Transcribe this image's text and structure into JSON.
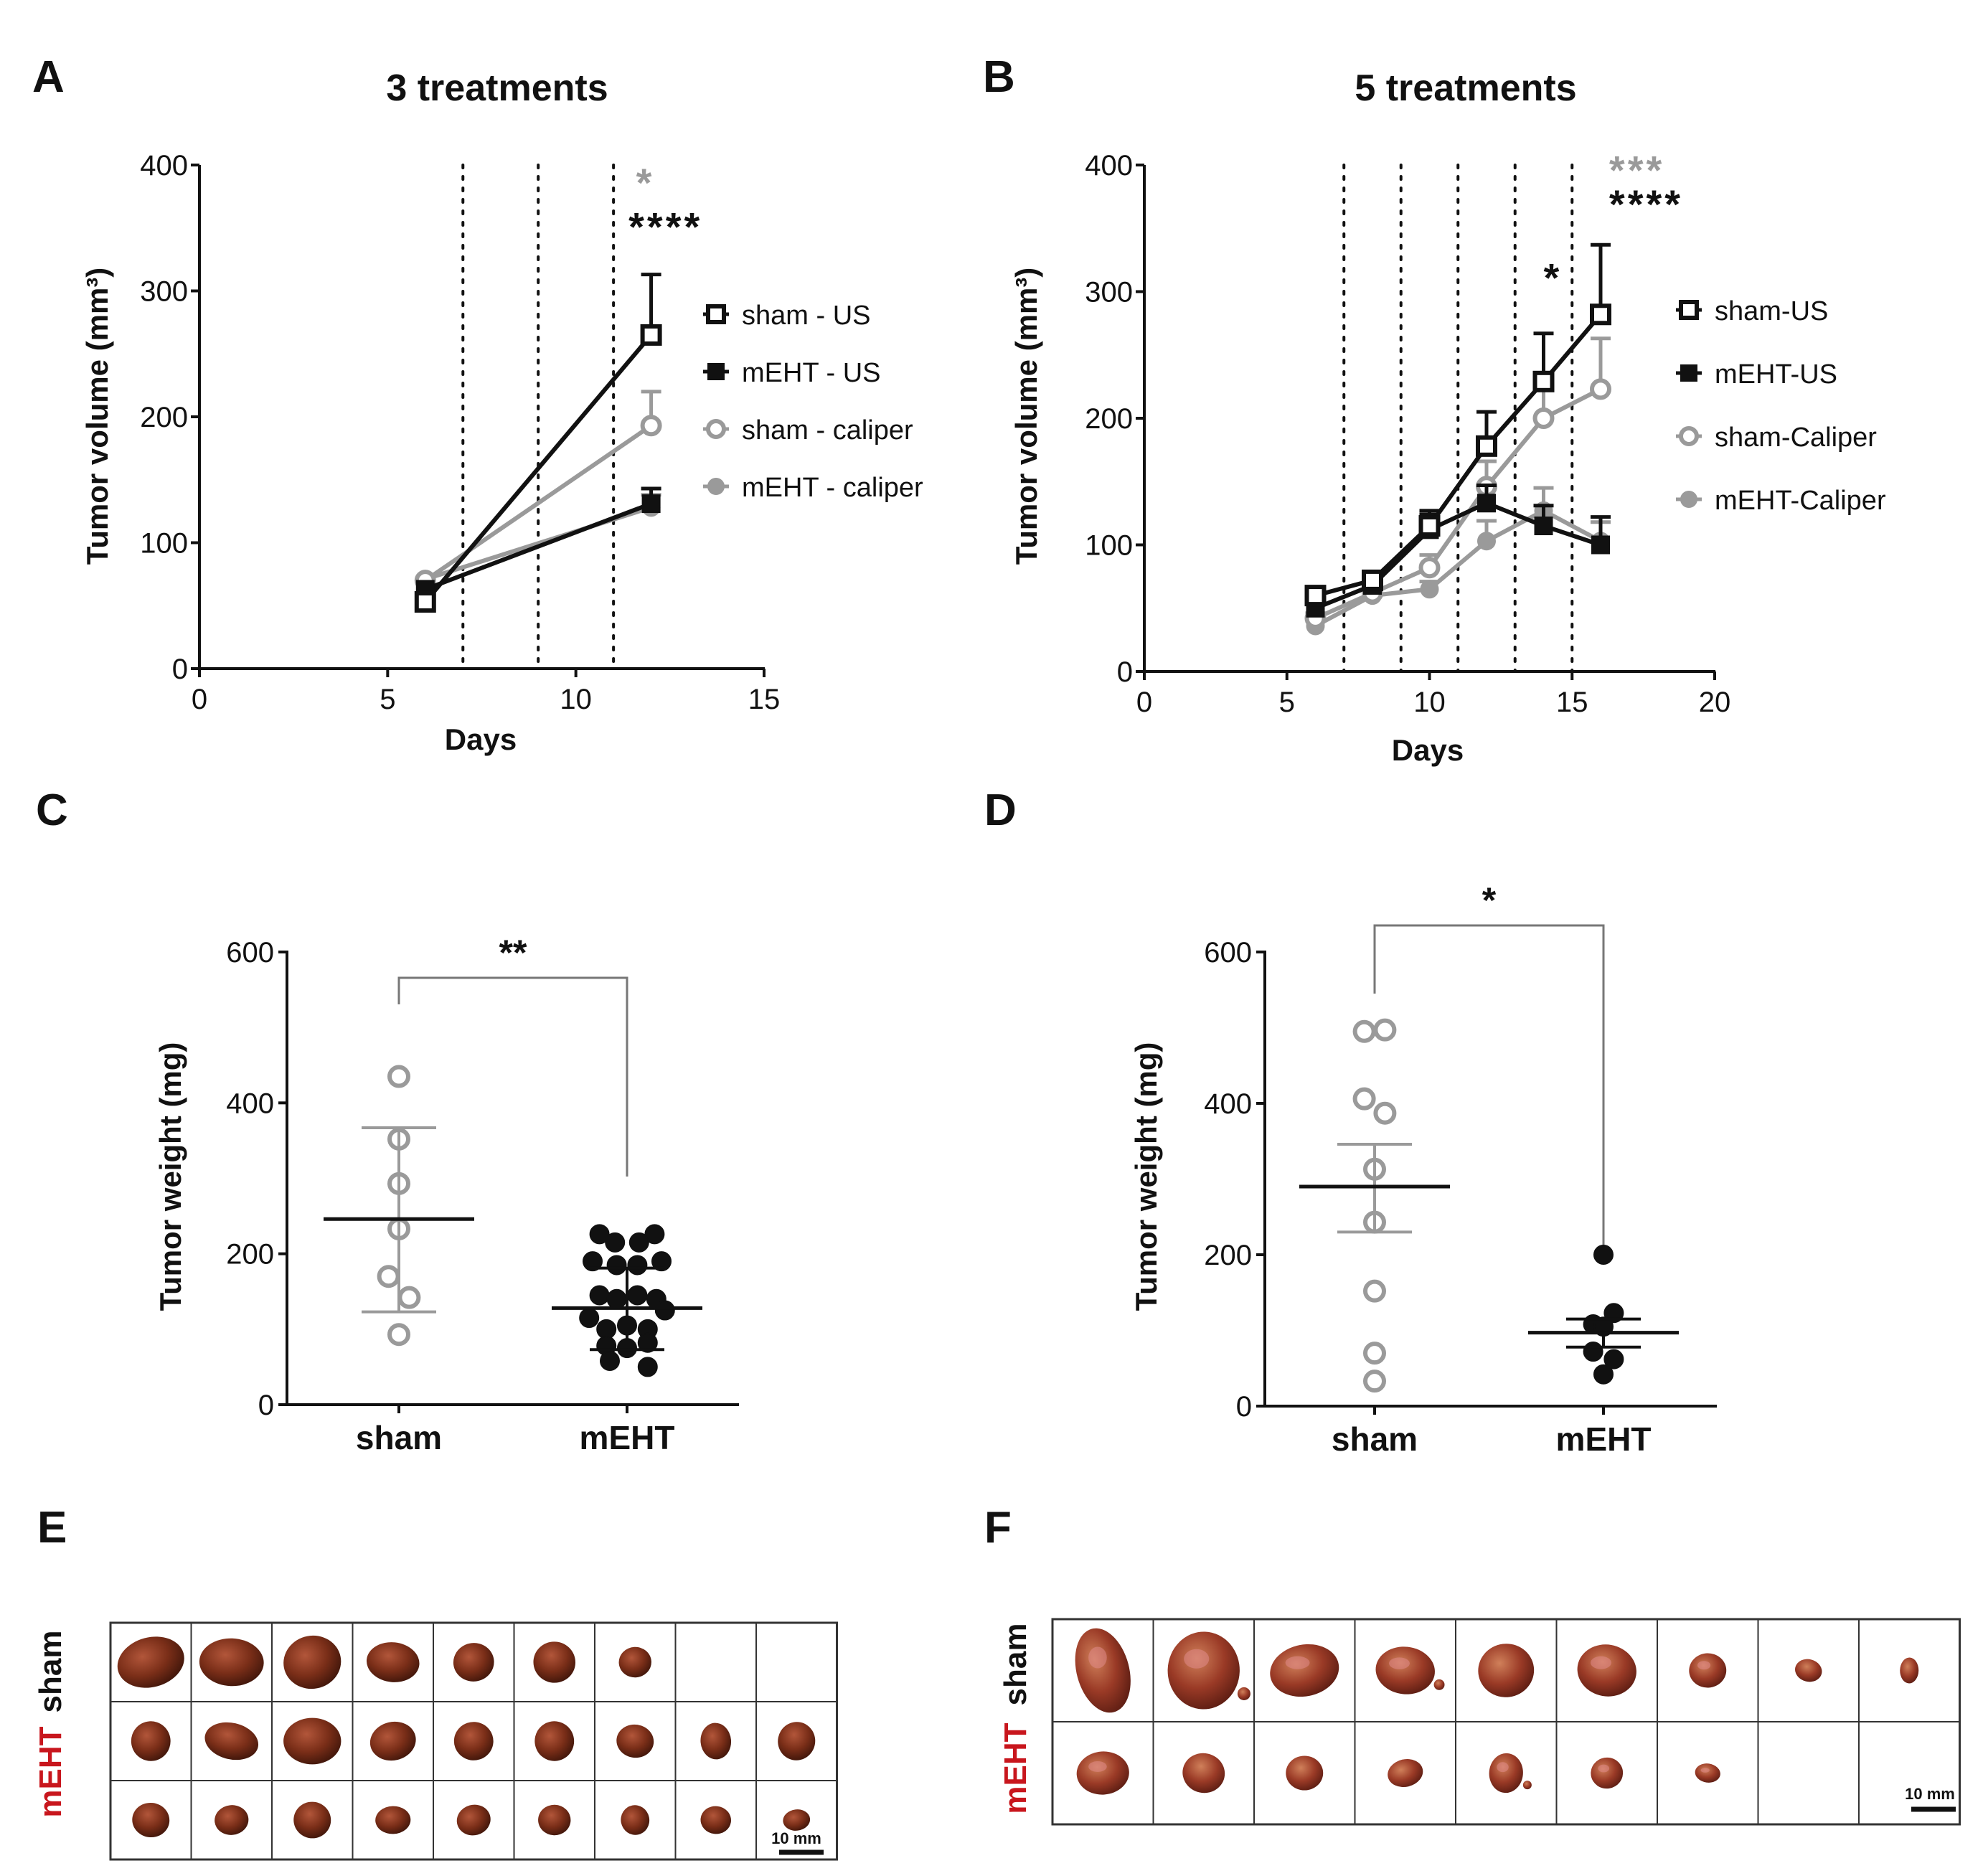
{
  "panel_letters": {
    "a": "A",
    "b": "B",
    "c": "C",
    "d": "D",
    "e": "E",
    "f": "F"
  },
  "colors": {
    "black": "#111111",
    "grey": "#9a9a9a",
    "tumor": "#7a2e18",
    "tumor_dark": "#4a1a0e",
    "tumor_light": "#c06a3c",
    "red_label": "#c8161d"
  },
  "chart_data": [
    {
      "id": "A",
      "type": "line",
      "title": "3 treatments",
      "xlabel": "Days",
      "ylabel": "Tumor volume (mm³)",
      "xlim": [
        0,
        15
      ],
      "ylim": [
        0,
        400
      ],
      "xticks": [
        0,
        5,
        10,
        15
      ],
      "yticks": [
        0,
        100,
        200,
        300,
        400
      ],
      "x_tick_labels": [
        "0",
        "5",
        "10",
        "15"
      ],
      "y_tick_labels": [
        "0",
        "100",
        "200",
        "300",
        "400"
      ],
      "treatment_days": [
        7,
        9,
        11
      ],
      "series": [
        {
          "name": "sham - US",
          "color": "black",
          "marker": "open-square",
          "x": [
            6,
            12
          ],
          "y": [
            53,
            265
          ],
          "err": [
            0,
            48
          ]
        },
        {
          "name": "mEHT - US",
          "color": "black",
          "marker": "filled-square",
          "x": [
            6,
            12
          ],
          "y": [
            63,
            131
          ],
          "err": [
            0,
            12
          ]
        },
        {
          "name": "sham - caliper",
          "color": "grey",
          "marker": "open-circle",
          "x": [
            6,
            12
          ],
          "y": [
            70,
            193
          ],
          "err": [
            0,
            27
          ]
        },
        {
          "name": "mEHT - caliper",
          "color": "grey",
          "marker": "filled-circle",
          "x": [
            6,
            12
          ],
          "y": [
            71,
            128
          ],
          "err": [
            0,
            10
          ]
        }
      ],
      "annotations": [
        {
          "text": "*",
          "color": "grey",
          "x": 11.6,
          "y": 375
        },
        {
          "text": "****",
          "color": "black",
          "x": 11.4,
          "y": 340
        }
      ],
      "legend_position": "right"
    },
    {
      "id": "B",
      "type": "line",
      "title": "5 treatments",
      "xlabel": "Days",
      "ylabel": "Tumor volume (mm³)",
      "xlim": [
        0,
        20
      ],
      "ylim": [
        0,
        400
      ],
      "xticks": [
        0,
        5,
        10,
        15,
        20
      ],
      "yticks": [
        0,
        100,
        200,
        300,
        400
      ],
      "x_tick_labels": [
        "0",
        "5",
        "10",
        "15",
        "20"
      ],
      "y_tick_labels": [
        "0",
        "100",
        "200",
        "300",
        "400"
      ],
      "treatment_days": [
        7,
        9,
        11,
        13,
        15
      ],
      "series": [
        {
          "name": "sham-US",
          "color": "black",
          "marker": "open-square",
          "x": [
            6,
            8,
            10,
            12,
            14,
            16
          ],
          "y": [
            60,
            72,
            115,
            178,
            229,
            282
          ],
          "err": [
            5,
            7,
            12,
            27,
            38,
            55
          ]
        },
        {
          "name": "mEHT-US",
          "color": "black",
          "marker": "filled-square",
          "x": [
            6,
            8,
            10,
            12,
            14,
            16
          ],
          "y": [
            50,
            68,
            112,
            133,
            115,
            100
          ],
          "err": [
            4,
            6,
            12,
            14,
            16,
            22
          ]
        },
        {
          "name": "sham-Caliper",
          "color": "grey",
          "marker": "open-circle",
          "x": [
            6,
            8,
            10,
            12,
            14,
            16
          ],
          "y": [
            42,
            62,
            82,
            146,
            200,
            223
          ],
          "err": [
            4,
            6,
            10,
            20,
            25,
            40
          ]
        },
        {
          "name": "mEHT-Caliper",
          "color": "grey",
          "marker": "filled-circle",
          "x": [
            6,
            8,
            10,
            12,
            14,
            16
          ],
          "y": [
            36,
            60,
            65,
            103,
            127,
            103
          ],
          "err": [
            4,
            5,
            6,
            16,
            18,
            15
          ]
        }
      ],
      "annotations": [
        {
          "text": "*",
          "color": "black",
          "x": 14,
          "y": 300
        },
        {
          "text": "***",
          "color": "grey",
          "x": 16.3,
          "y": 385
        },
        {
          "text": "****",
          "color": "black",
          "x": 16.3,
          "y": 358
        }
      ],
      "legend_position": "right"
    },
    {
      "id": "C",
      "type": "scatter",
      "ylabel": "Tumor weight (mg)",
      "ylim": [
        0,
        600
      ],
      "yticks": [
        0,
        200,
        400,
        600
      ],
      "y_tick_labels": [
        "0",
        "200",
        "400",
        "600"
      ],
      "categories": [
        "sham",
        "mEHT"
      ],
      "groups": [
        {
          "name": "sham",
          "color": "grey",
          "marker": "open-circle",
          "mean": 246,
          "sd_low": 123,
          "sd_high": 367,
          "points": [
            [
              0.0,
              435
            ],
            [
              0.0,
              352
            ],
            [
              0.0,
              293
            ],
            [
              0.0,
              233
            ],
            [
              -0.06,
              170
            ],
            [
              0.06,
              142
            ],
            [
              0.0,
              93
            ]
          ]
        },
        {
          "name": "mEHT",
          "color": "black",
          "marker": "filled-circle",
          "mean": 128,
          "sd_low": 73,
          "sd_high": 181,
          "points": [
            [
              -0.16,
              226
            ],
            [
              0.16,
              226
            ],
            [
              -0.07,
              215
            ],
            [
              0.07,
              215
            ],
            [
              -0.2,
              190
            ],
            [
              0.2,
              190
            ],
            [
              -0.06,
              185
            ],
            [
              0.06,
              185
            ],
            [
              -0.16,
              145
            ],
            [
              -0.06,
              140
            ],
            [
              0.06,
              145
            ],
            [
              0.17,
              140
            ],
            [
              -0.22,
              115
            ],
            [
              0.22,
              125
            ],
            [
              -0.12,
              100
            ],
            [
              0.0,
              105
            ],
            [
              0.12,
              100
            ],
            [
              -0.12,
              78
            ],
            [
              0.0,
              75
            ],
            [
              0.12,
              82
            ],
            [
              -0.1,
              58
            ],
            [
              0.12,
              50
            ]
          ]
        }
      ],
      "significance": "**"
    },
    {
      "id": "D",
      "type": "scatter",
      "ylabel": "Tumor weight (mg)",
      "ylim": [
        0,
        600
      ],
      "yticks": [
        0,
        200,
        400,
        600
      ],
      "y_tick_labels": [
        "0",
        "200",
        "400",
        "600"
      ],
      "categories": [
        "sham",
        "mEHT"
      ],
      "groups": [
        {
          "name": "sham",
          "color": "grey",
          "marker": "open-circle",
          "mean": 290,
          "sd_low": 230,
          "sd_high": 346,
          "points": [
            [
              -0.06,
              495
            ],
            [
              0.06,
              497
            ],
            [
              -0.06,
              406
            ],
            [
              0.06,
              387
            ],
            [
              0.0,
              313
            ],
            [
              0.0,
              243
            ],
            [
              0.0,
              152
            ],
            [
              0.0,
              70
            ],
            [
              0.0,
              33
            ]
          ]
        },
        {
          "name": "mEHT",
          "color": "black",
          "marker": "filled-circle",
          "mean": 97,
          "sd_low": 78,
          "sd_high": 115,
          "points": [
            [
              0.0,
              200
            ],
            [
              -0.06,
              108
            ],
            [
              0.06,
              123
            ],
            [
              0.0,
              105
            ],
            [
              -0.06,
              72
            ],
            [
              0.06,
              62
            ],
            [
              0.0,
              42
            ]
          ]
        }
      ],
      "significance": "*"
    }
  ],
  "photos": {
    "E": {
      "row_labels": [
        "sham",
        "mEHT"
      ],
      "scale_bar": "10 mm",
      "rows": [
        [
          [
            1.0,
            0.75,
            0,
            0
          ],
          [
            0.95,
            0.72,
            0,
            0
          ],
          [
            0.85,
            0.8,
            0,
            0
          ],
          [
            0.78,
            0.6,
            0,
            0
          ],
          [
            0.6,
            0.58,
            0,
            0
          ],
          [
            0.62,
            0.62,
            0,
            0
          ],
          [
            0.48,
            0.46,
            0,
            0
          ],
          [
            0,
            0,
            0,
            0
          ],
          [
            0,
            0,
            0,
            0
          ]
        ],
        [
          [
            0.58,
            0.6,
            0,
            0
          ],
          [
            0.8,
            0.55,
            0,
            0
          ],
          [
            0.85,
            0.7,
            0,
            0
          ],
          [
            0.68,
            0.58,
            0,
            0
          ],
          [
            0.58,
            0.58,
            0,
            0
          ],
          [
            0.58,
            0.6,
            0,
            0
          ],
          [
            0.55,
            0.5,
            0,
            0
          ],
          [
            0.45,
            0.55,
            0,
            0
          ],
          [
            0.55,
            0.58,
            0,
            0
          ]
        ],
        [
          [
            0.55,
            0.52,
            0,
            0
          ],
          [
            0.5,
            0.45,
            0,
            0
          ],
          [
            0.55,
            0.55,
            0,
            0
          ],
          [
            0.52,
            0.42,
            0,
            0
          ],
          [
            0.5,
            0.46,
            0,
            0
          ],
          [
            0.48,
            0.46,
            0,
            0
          ],
          [
            0.42,
            0.45,
            0,
            0
          ],
          [
            0.45,
            0.42,
            0,
            0
          ],
          [
            0.4,
            0.32,
            0,
            0
          ]
        ]
      ]
    },
    "F": {
      "row_labels": [
        "sham",
        "mEHT"
      ],
      "scale_bar": "10 mm",
      "rows": [
        [
          [
            0.62,
            1.0,
            1,
            0
          ],
          [
            0.85,
            0.9,
            1,
            1
          ],
          [
            0.82,
            0.6,
            1,
            0
          ],
          [
            0.7,
            0.55,
            1,
            1
          ],
          [
            0.66,
            0.62,
            0,
            0
          ],
          [
            0.7,
            0.6,
            1,
            0
          ],
          [
            0.44,
            0.4,
            1,
            0
          ],
          [
            0.32,
            0.26,
            0,
            0
          ],
          [
            0.22,
            0.3,
            0,
            0
          ]
        ],
        [
          [
            0.62,
            0.5,
            1,
            0
          ],
          [
            0.5,
            0.46,
            0,
            0
          ],
          [
            0.44,
            0.4,
            0,
            0
          ],
          [
            0.42,
            0.32,
            0,
            0
          ],
          [
            0.4,
            0.46,
            1,
            1
          ],
          [
            0.38,
            0.36,
            1,
            0
          ],
          [
            0.3,
            0.22,
            1,
            0
          ],
          [
            0,
            0,
            0,
            0
          ],
          [
            0,
            0,
            0,
            0
          ]
        ]
      ]
    }
  }
}
